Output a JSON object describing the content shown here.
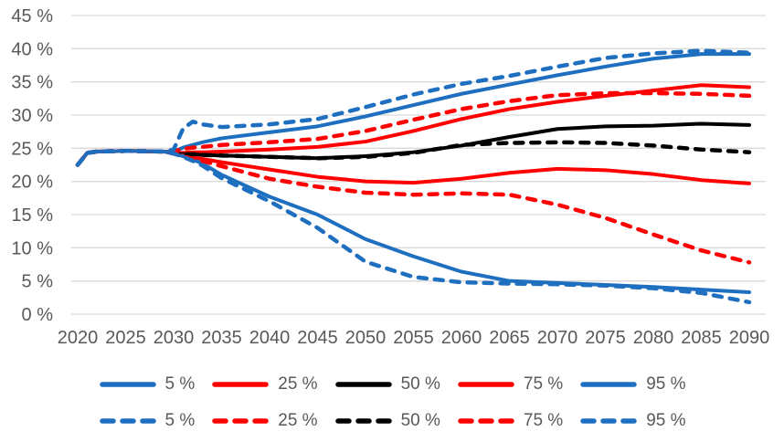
{
  "chart_data": {
    "type": "line",
    "x": [
      2020,
      2021,
      2022,
      2025,
      2029,
      2030,
      2031,
      2032,
      2033,
      2035,
      2040,
      2045,
      2050,
      2055,
      2060,
      2065,
      2070,
      2075,
      2080,
      2085,
      2090
    ],
    "x_tick_labels": [
      "2020",
      "2025",
      "2030",
      "2035",
      "2040",
      "2045",
      "2050",
      "2055",
      "2060",
      "2065",
      "2070",
      "2075",
      "2080",
      "2085",
      "2090"
    ],
    "y_tick_labels": [
      "0 %",
      "5 %",
      "10 %",
      "15 %",
      "20 %",
      "25 %",
      "30 %",
      "35 %",
      "40 %",
      "45 %"
    ],
    "y_tick_values": [
      0,
      5,
      10,
      15,
      20,
      25,
      30,
      35,
      40,
      45
    ],
    "ylim": [
      0,
      45
    ],
    "xlim": [
      2020,
      2090
    ],
    "grid": true,
    "title": "",
    "xlabel": "",
    "ylabel": "",
    "legend_position": "bottom",
    "colors": {
      "blue": "#1F6FC0",
      "red": "#FF0000",
      "black": "#000000",
      "grid": "#D9D9D9",
      "tick_text": "#595959"
    },
    "series": [
      {
        "name": "95 % solid",
        "color": "#1F6FC0",
        "dash": false,
        "values": [
          22.5,
          24.3,
          24.5,
          24.6,
          24.5,
          24.5,
          25.1,
          25.5,
          25.9,
          26.5,
          27.4,
          28.3,
          29.8,
          31.5,
          33.2,
          34.6,
          36.0,
          37.3,
          38.5,
          39.2,
          39.2
        ]
      },
      {
        "name": "75 % solid",
        "color": "#FF0000",
        "dash": false,
        "values": [
          22.5,
          24.3,
          24.5,
          24.6,
          24.5,
          24.3,
          24.3,
          24.4,
          24.4,
          24.5,
          24.8,
          25.2,
          26.0,
          27.6,
          29.4,
          30.9,
          32.0,
          32.9,
          33.7,
          34.5,
          34.2
        ]
      },
      {
        "name": "50 % solid",
        "color": "#000000",
        "dash": false,
        "values": [
          22.5,
          24.3,
          24.5,
          24.6,
          24.5,
          24.2,
          24.1,
          24.1,
          24.0,
          23.9,
          23.7,
          23.5,
          23.8,
          24.4,
          25.4,
          26.7,
          27.9,
          28.3,
          28.4,
          28.7,
          28.5
        ]
      },
      {
        "name": "25 % solid",
        "color": "#FF0000",
        "dash": false,
        "values": [
          22.5,
          24.3,
          24.5,
          24.6,
          24.5,
          24.2,
          23.9,
          23.6,
          23.4,
          22.9,
          21.8,
          20.7,
          20.0,
          19.8,
          20.4,
          21.3,
          21.9,
          21.7,
          21.1,
          20.2,
          19.7
        ]
      },
      {
        "name": "5 % solid",
        "color": "#1F6FC0",
        "dash": false,
        "values": [
          22.5,
          24.3,
          24.5,
          24.6,
          24.5,
          24.2,
          23.8,
          23.3,
          22.7,
          21.0,
          17.7,
          15.0,
          11.3,
          8.7,
          6.4,
          5.0,
          4.7,
          4.4,
          4.1,
          3.7,
          3.3
        ]
      },
      {
        "name": "50 % dashed",
        "color": "#000000",
        "dash": true,
        "values": [
          22.5,
          24.3,
          24.5,
          24.6,
          24.5,
          24.2,
          24.1,
          24.1,
          24.0,
          23.9,
          23.7,
          23.5,
          23.7,
          24.3,
          25.5,
          25.8,
          25.9,
          25.8,
          25.4,
          24.8,
          24.4
        ]
      },
      {
        "name": "75 % dashed",
        "color": "#FF0000",
        "dash": true,
        "values": [
          22.5,
          24.3,
          24.5,
          24.6,
          24.5,
          24.5,
          24.9,
          25.1,
          25.2,
          25.5,
          25.9,
          26.4,
          27.6,
          29.3,
          30.9,
          32.1,
          33.0,
          33.3,
          33.3,
          33.2,
          32.9
        ]
      },
      {
        "name": "25 % dashed",
        "color": "#FF0000",
        "dash": true,
        "values": [
          22.5,
          24.3,
          24.5,
          24.6,
          24.5,
          24.2,
          23.8,
          23.4,
          23.1,
          22.3,
          20.4,
          19.2,
          18.3,
          18.0,
          18.2,
          18.0,
          16.5,
          14.5,
          12.0,
          9.6,
          7.8
        ]
      },
      {
        "name": "95 % dashed",
        "color": "#1F6FC0",
        "dash": true,
        "values": [
          22.5,
          24.3,
          24.5,
          24.6,
          24.5,
          24.8,
          28.0,
          29.0,
          28.6,
          28.2,
          28.6,
          29.4,
          31.2,
          33.1,
          34.7,
          35.9,
          37.3,
          38.6,
          39.3,
          39.7,
          39.4
        ]
      },
      {
        "name": "5 % dashed",
        "color": "#1F6FC0",
        "dash": true,
        "values": [
          22.5,
          24.3,
          24.5,
          24.6,
          24.5,
          24.2,
          23.7,
          23.1,
          22.4,
          20.5,
          17.0,
          13.0,
          7.9,
          5.6,
          4.8,
          4.6,
          4.5,
          4.3,
          3.9,
          3.2,
          1.8
        ]
      }
    ]
  },
  "legend": {
    "rows": [
      {
        "style": "solid",
        "items": [
          {
            "label": "5 %",
            "color": "#1F6FC0"
          },
          {
            "label": "25 %",
            "color": "#FF0000"
          },
          {
            "label": "50 %",
            "color": "#000000"
          },
          {
            "label": "75 %",
            "color": "#FF0000"
          },
          {
            "label": "95 %",
            "color": "#1F6FC0"
          }
        ]
      },
      {
        "style": "dashed",
        "items": [
          {
            "label": "5 %",
            "color": "#1F6FC0"
          },
          {
            "label": "25 %",
            "color": "#FF0000"
          },
          {
            "label": "50 %",
            "color": "#000000"
          },
          {
            "label": "75 %",
            "color": "#FF0000"
          },
          {
            "label": "95 %",
            "color": "#1F6FC0"
          }
        ]
      }
    ]
  }
}
